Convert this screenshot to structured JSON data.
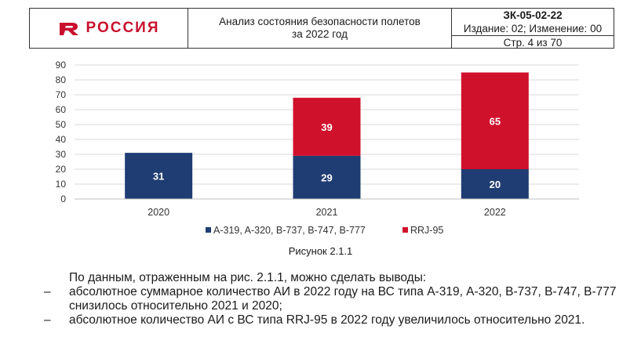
{
  "header": {
    "logo_text": "РОССИЯ",
    "title_line1": "Анализ состояния безопасности полетов",
    "title_line2": "за 2022 год",
    "code": "ЗК-05-02-22",
    "edition": "Издание: 02; Изменение: 00",
    "page": "Стр. 4 из 70"
  },
  "colors": {
    "brand": "#c8102e",
    "series_a": "#1f3d73",
    "series_b": "#d0112b"
  },
  "chart_data": {
    "type": "bar",
    "stacked": true,
    "categories": [
      "2020",
      "2021",
      "2022"
    ],
    "series": [
      {
        "name": "A-319, A-320, B-737, B-747, B-777",
        "values": [
          31,
          29,
          20
        ],
        "color": "#1f3d73"
      },
      {
        "name": "RRJ-95",
        "values": [
          0,
          39,
          65
        ],
        "color": "#d0112b"
      }
    ],
    "ylim": [
      0,
      90
    ],
    "yticks": [
      0,
      10,
      20,
      30,
      40,
      50,
      60,
      70,
      80,
      90
    ],
    "grid": true,
    "legend": "bottom"
  },
  "caption": "Рисунок 2.1.1",
  "text": {
    "lead": "По данным, отраженным на рис. 2.1.1, можно сделать выводы:",
    "items": [
      {
        "dash": "–",
        "text": "абсолютное суммарное количество АИ в 2022 году на ВС типа А-319, А-320, B-737, B-747, B-777 снизилось относительно 2021 и 2020;"
      },
      {
        "dash": "–",
        "text": "абсолютное количество АИ с ВС типа RRJ-95 в 2022 году увеличилось относительно 2021."
      }
    ]
  }
}
